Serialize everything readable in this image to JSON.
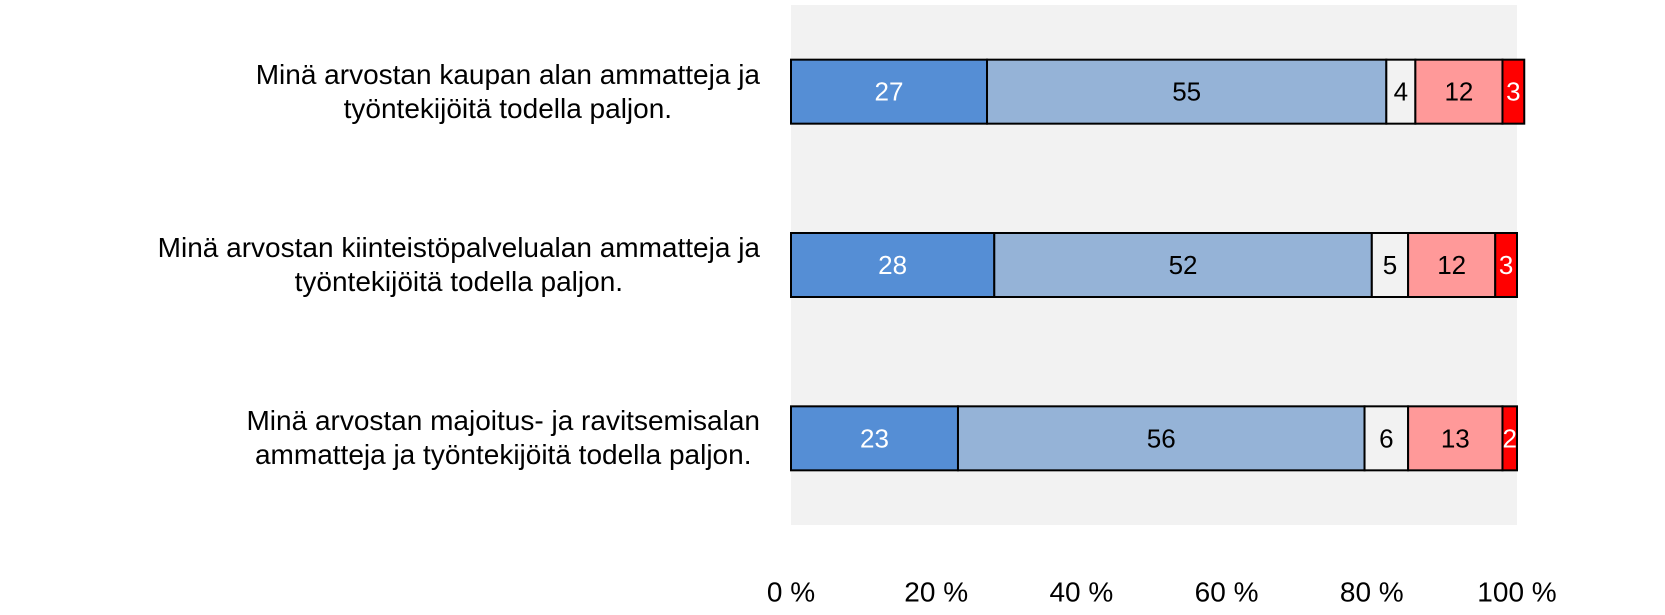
{
  "chart_data": {
    "type": "stacked_barh",
    "categories": [
      "Minä arvostan kaupan alan ammatteja ja\ntyöntekijöitä todella paljon.",
      "Minä arvostan kiinteistöpalvelualan ammatteja ja\ntyöntekijöitä todella paljon.",
      "Minä arvostan majoitus- ja ravitsemisalan\nammatteja ja työntekijöitä todella paljon."
    ],
    "series": [
      {
        "color": "#558ed5",
        "label_color": "#ffffff",
        "values": [
          27,
          28,
          23
        ]
      },
      {
        "color": "#95b3d7",
        "label_color": "#000000",
        "values": [
          55,
          52,
          56
        ]
      },
      {
        "color": "#f2f2f2",
        "label_color": "#000000",
        "values": [
          4,
          5,
          6
        ]
      },
      {
        "color": "#ff9999",
        "label_color": "#000000",
        "values": [
          12,
          12,
          13
        ]
      },
      {
        "color": "#ff0000",
        "label_color": "#ffffff",
        "values": [
          3,
          3,
          2
        ]
      }
    ],
    "xlim": [
      0,
      100
    ],
    "xticks": [
      {
        "value": 0,
        "label": "0 %"
      },
      {
        "value": 20,
        "label": "20 %"
      },
      {
        "value": 40,
        "label": "40 %"
      },
      {
        "value": 60,
        "label": "60 %"
      },
      {
        "value": 80,
        "label": "80 %"
      },
      {
        "value": 100,
        "label": "100 %"
      }
    ],
    "plot_background": "#f2f2f2"
  }
}
